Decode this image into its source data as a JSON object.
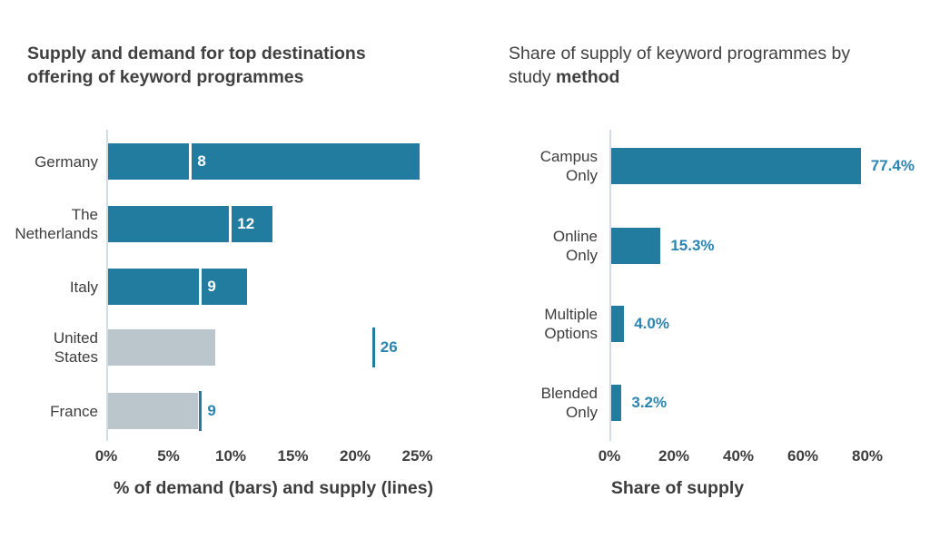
{
  "colors": {
    "teal_bar": "#217C9F",
    "gray_bar": "#BAC6CC",
    "value_text": "#2B84B2",
    "axis_line": "#CFDEE5",
    "text_dark": "#3D3D3D",
    "title_text": "#404040",
    "white": "#FFFFFF"
  },
  "chart_data": [
    {
      "type": "bar",
      "orientation": "horizontal",
      "title": "Supply and demand for top destinations offering of keyword programmes",
      "xlabel": "% of demand (bars) and supply (lines)",
      "x_ticks": [
        "0%",
        "5%",
        "10%",
        "15%",
        "20%",
        "25%"
      ],
      "x_tick_values": [
        0,
        5,
        10,
        15,
        20,
        25
      ],
      "xlim": [
        0,
        26
      ],
      "grid": false,
      "legend": "none",
      "categories": [
        "Germany",
        "The Netherlands",
        "Italy",
        "United States",
        "France"
      ],
      "series": [
        {
          "name": "% of demand (bars)",
          "unit": "%",
          "values": [
            25.0,
            13.2,
            11.2,
            8.6,
            7.2
          ]
        },
        {
          "name": "supply (lines)",
          "unit": "%",
          "values": [
            6.6,
            9.8,
            7.4,
            21.3,
            7.4
          ],
          "labels": [
            "8",
            "12",
            "9",
            "26",
            "9"
          ]
        }
      ],
      "highlighted_rows": [
        true,
        true,
        true,
        false,
        false
      ]
    },
    {
      "type": "bar",
      "orientation": "horizontal",
      "title": "Share of supply of keyword programmes by study method",
      "title_regular": "Share of supply of keyword programmes by study ",
      "title_bold": "method",
      "xlabel": "Share of supply",
      "x_ticks": [
        "0%",
        "20%",
        "40%",
        "60%",
        "80%"
      ],
      "x_tick_values": [
        0,
        20,
        40,
        60,
        80
      ],
      "xlim": [
        0,
        88
      ],
      "grid": false,
      "legend": "none",
      "categories": [
        "Campus Only",
        "Online Only",
        "Multiple Options",
        "Blended Only"
      ],
      "values": [
        77.4,
        15.3,
        4.0,
        3.2
      ],
      "value_labels": [
        "77.4%",
        "15.3%",
        "4.0%",
        "3.2%"
      ]
    }
  ]
}
